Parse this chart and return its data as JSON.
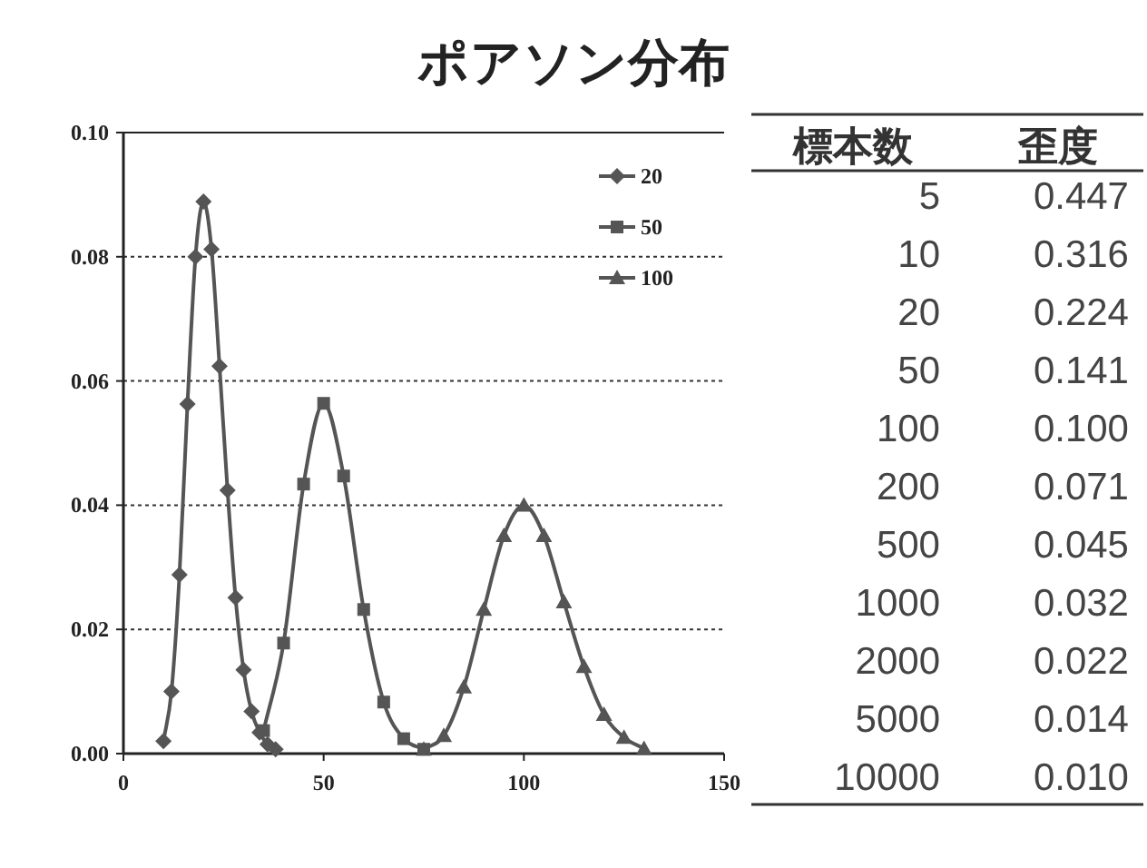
{
  "chart_data": [
    {
      "type": "line",
      "title": "ポアソン分布",
      "xlim": [
        0,
        150
      ],
      "xticks": [
        0,
        50,
        100,
        150
      ],
      "ylim": [
        0,
        0.1
      ],
      "yticks": [
        {
          "value": 0,
          "label": "0.00"
        },
        {
          "value": 0.02,
          "label": "0.02"
        },
        {
          "value": 0.04,
          "label": "0.04"
        },
        {
          "value": 0.06,
          "label": "0.06"
        },
        {
          "value": 0.08,
          "label": "0.08"
        },
        {
          "value": 0.1,
          "label": "0.10"
        }
      ],
      "grid": "y",
      "legend": "top right",
      "line_style": "solid",
      "series": [
        {
          "name": "20",
          "color": "#555555",
          "marker": "diamond",
          "x": [
            10,
            12,
            14,
            16,
            18,
            20,
            22,
            24,
            26,
            28,
            30,
            32,
            34,
            36,
            38
          ],
          "values": [
            0.002,
            0.01,
            0.0288,
            0.0563,
            0.08,
            0.0889,
            0.0812,
            0.0624,
            0.0424,
            0.0251,
            0.0135,
            0.0068,
            0.0034,
            0.0015,
            0.0007
          ]
        },
        {
          "name": "50",
          "color": "#555555",
          "marker": "square",
          "x": [
            35,
            40,
            45,
            50,
            55,
            60,
            65,
            70,
            75
          ],
          "values": [
            0.0037,
            0.0178,
            0.0434,
            0.0564,
            0.0447,
            0.0232,
            0.0083,
            0.0024,
            0.0007
          ]
        },
        {
          "name": "100",
          "color": "#555555",
          "marker": "triangle",
          "x": [
            75,
            80,
            85,
            90,
            95,
            100,
            105,
            110,
            115,
            120,
            125,
            130
          ],
          "values": [
            0.0007,
            0.0029,
            0.0107,
            0.0232,
            0.0351,
            0.04,
            0.0351,
            0.0244,
            0.014,
            0.0063,
            0.0026,
            0.0008
          ]
        }
      ]
    },
    {
      "type": "other",
      "categories": [
        "標本数",
        "歪度"
      ],
      "cell_labels": [
        [
          "5",
          "0.447"
        ],
        [
          "10",
          "0.316"
        ],
        [
          "20",
          "0.224"
        ],
        [
          "50",
          "0.141"
        ],
        [
          "100",
          "0.100"
        ],
        [
          "200",
          "0.071"
        ],
        [
          "500",
          "0.045"
        ],
        [
          "1000",
          "0.032"
        ],
        [
          "2000",
          "0.022"
        ],
        [
          "5000",
          "0.014"
        ],
        [
          "10000",
          "0.010"
        ]
      ]
    }
  ]
}
